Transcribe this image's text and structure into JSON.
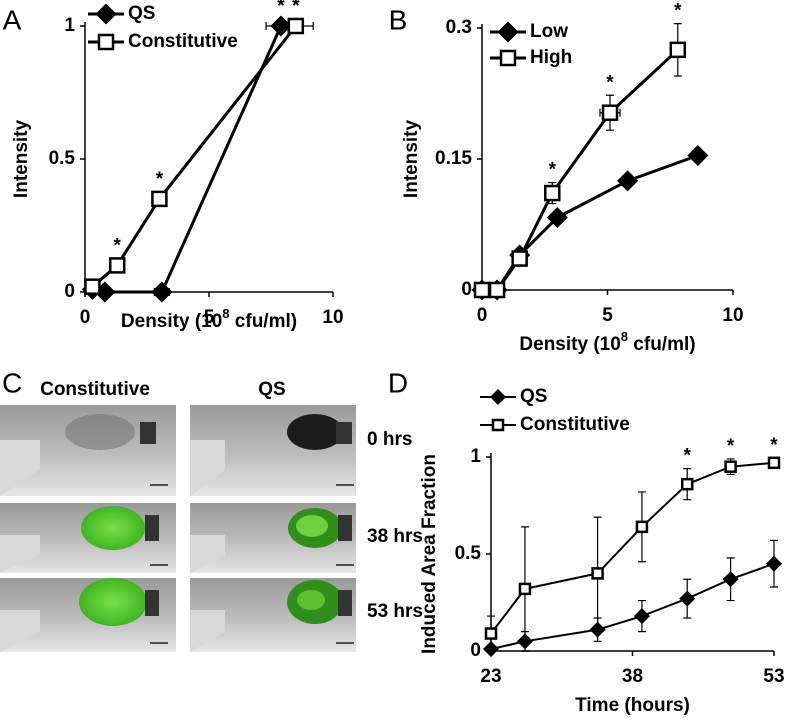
{
  "chart_data": [
    {
      "type": "line",
      "panel_label": "A",
      "ylabel": "Intensity",
      "xlabel": [
        "Density (10",
        "8",
        " cfu/ml)"
      ],
      "xlim": [
        0,
        10
      ],
      "xticks": [
        0,
        5,
        10
      ],
      "ylim": [
        0,
        1
      ],
      "yticks": [
        0,
        0.5,
        1
      ],
      "legend": "upper left",
      "series": [
        {
          "name": "QS",
          "color": "#000000",
          "marker": "diamond",
          "filled": true,
          "x": [
            0.3,
            0.8,
            3.1,
            7.9
          ],
          "values": [
            0.01,
            0,
            0,
            1
          ],
          "x_errors": [
            null,
            null,
            0.3,
            0.6
          ],
          "annotations": [
            null,
            null,
            null,
            "*"
          ]
        },
        {
          "name": "Constitutive",
          "color": "#000000",
          "marker": "square",
          "filled": false,
          "x": [
            0.3,
            1.3,
            3.0,
            8.5
          ],
          "values": [
            0.02,
            0.1,
            0.35,
            1
          ],
          "x_errors": [
            null,
            null,
            null,
            0.7
          ],
          "annotations": [
            null,
            "*",
            "*",
            "*"
          ]
        }
      ]
    },
    {
      "type": "line",
      "panel_label": "B",
      "ylabel": "Intensity",
      "xlabel": [
        "Density (10",
        "8",
        " cfu/ml)"
      ],
      "xlim": [
        0,
        10
      ],
      "xticks": [
        0,
        5,
        10
      ],
      "ylim": [
        0,
        0.3
      ],
      "yticks": [
        0,
        0.15,
        0.3
      ],
      "legend": "upper left",
      "series": [
        {
          "name": "Low",
          "color": "#000000",
          "marker": "diamond",
          "filled": true,
          "x": [
            0,
            0.6,
            1.5,
            3.0,
            5.8,
            8.6
          ],
          "values": [
            0,
            0,
            0.04,
            0.083,
            0.125,
            0.154
          ]
        },
        {
          "name": "High",
          "color": "#000000",
          "marker": "square",
          "filled": false,
          "x": [
            0,
            0.6,
            1.5,
            2.8,
            5.1,
            7.8
          ],
          "values": [
            0,
            0,
            0.036,
            0.111,
            0.203,
            0.275
          ],
          "errors": [
            null,
            null,
            null,
            0.012,
            0.02,
            0.03
          ],
          "x_errors": [
            null,
            null,
            null,
            null,
            0.4,
            null
          ],
          "annotations": [
            null,
            null,
            null,
            "*",
            "*",
            "*"
          ]
        }
      ]
    },
    {
      "type": "line",
      "panel_label": "D",
      "ylabel": "Induced Area Fraction",
      "xlabel": "Time (hours)",
      "xlim": [
        23,
        53
      ],
      "xticks": [
        23,
        38,
        53
      ],
      "ylim": [
        0,
        1
      ],
      "yticks": [
        0,
        0.5,
        1
      ],
      "legend": "upper left",
      "series": [
        {
          "name": "QS",
          "color": "#000000",
          "marker": "diamond",
          "filled": true,
          "x": [
            23,
            26.6,
            34.3,
            39,
            43.8,
            48.4,
            53
          ],
          "values": [
            0.01,
            0.05,
            0.11,
            0.18,
            0.27,
            0.37,
            0.45
          ],
          "errors": [
            0.01,
            0.05,
            0.06,
            0.08,
            0.1,
            0.11,
            0.12
          ]
        },
        {
          "name": "Constitutive",
          "color": "#000000",
          "marker": "square",
          "filled": false,
          "x": [
            23,
            26.6,
            34.3,
            39,
            43.8,
            48.4,
            53
          ],
          "values": [
            0.09,
            0.32,
            0.4,
            0.64,
            0.86,
            0.95,
            0.97
          ],
          "errors": [
            0.09,
            0.32,
            0.29,
            0.18,
            0.08,
            0.04,
            0.02
          ],
          "annotations": [
            null,
            null,
            null,
            null,
            "*",
            "*",
            "*"
          ]
        }
      ]
    }
  ],
  "image_panel": {
    "panel_label": "C",
    "columns": [
      "Constitutive",
      "QS"
    ],
    "rows": [
      "0 hrs",
      "38 hrs",
      "53 hrs"
    ]
  }
}
